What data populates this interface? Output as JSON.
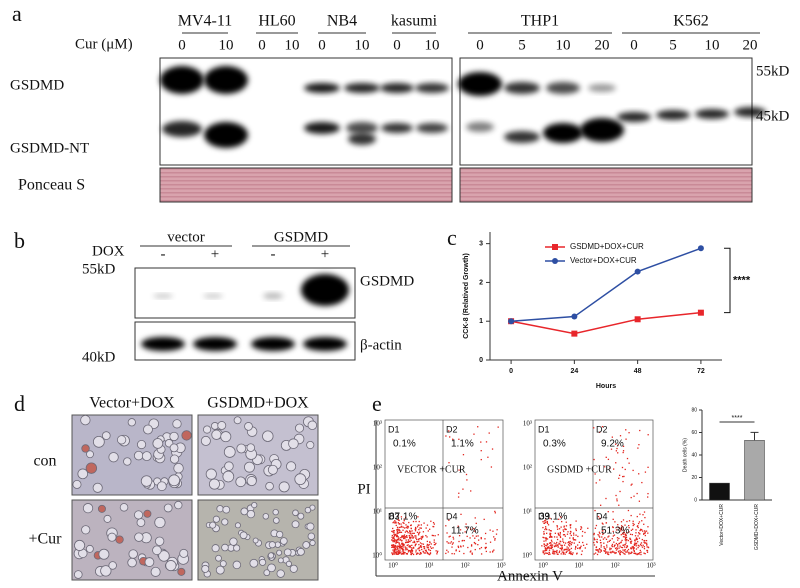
{
  "panel_labels": [
    "a",
    "b",
    "c",
    "d",
    "e"
  ],
  "blot_a": {
    "cur_label": "Cur (μM)",
    "cell_lines": [
      "MV4-11",
      "HL60",
      "NB4",
      "kasumi",
      "THP1",
      "K562"
    ],
    "doses": [
      "0",
      "10",
      "0",
      "10",
      "0",
      "10",
      "0",
      "10",
      "0",
      "5",
      "10",
      "20",
      "0",
      "5",
      "10",
      "20"
    ],
    "bands": [
      "GSDMD",
      "GSDMD-NT"
    ],
    "stain": "Ponceau S",
    "markers": [
      "55kD",
      "45kD"
    ]
  },
  "blot_b": {
    "dox_label": "DOX",
    "groups": [
      "vector",
      "GSDMD"
    ],
    "signs": [
      "-",
      "+",
      "-",
      "+"
    ],
    "markers": [
      "55kD",
      "40kD"
    ],
    "bands": [
      "GSDMD",
      "β-actin"
    ]
  },
  "panel_d": {
    "columns": [
      "Vector+DOX",
      "GSDMD+DOX"
    ],
    "rows": [
      "con",
      "+Cur"
    ]
  },
  "flow": {
    "y_label": "PI",
    "x_label": "Annexin V",
    "ticks": [
      "10⁰",
      "10¹",
      "10²",
      "10³"
    ],
    "plots": [
      {
        "label": "VECTOR +CUR",
        "quadrants": [
          "D1",
          "D2",
          "D3",
          "D4"
        ],
        "percents": [
          "0.1%",
          "1.1%",
          "87.1%",
          "11.7%"
        ]
      },
      {
        "label": "GSDMD +CUR",
        "quadrants": [
          "D1",
          "D2",
          "D3",
          "D4"
        ],
        "percents": [
          "0.3%",
          "9.2%",
          "39.1%",
          "51.3%"
        ]
      }
    ]
  },
  "chart_data": [
    {
      "type": "line",
      "x_label": "Hours",
      "y_label": "CCK-8 (Relatived Growth)",
      "x": [
        0,
        24,
        48,
        72
      ],
      "xlim": [
        -8,
        80
      ],
      "xticks": [
        0,
        24,
        48,
        72
      ],
      "ylim": [
        0,
        3.3
      ],
      "yticks": [
        0,
        1,
        2,
        3
      ],
      "annotation": "****",
      "series": [
        {
          "name": "GSDMD+DOX+CUR",
          "color": "#e8262b",
          "values": [
            1,
            0.68,
            1.05,
            1.22
          ]
        },
        {
          "name": "Vector+DOX+CUR",
          "color": "#2e4fa3",
          "values": [
            1,
            1.12,
            2.28,
            2.88
          ]
        }
      ]
    },
    {
      "type": "bar",
      "y_label": "Death cells (%)",
      "categories": [
        "Vector+DOX+CUR",
        "GSDMD+DOX+CUR"
      ],
      "values": [
        15,
        53
      ],
      "colors": [
        "#111111",
        "#a9a9a9"
      ],
      "ylim": [
        0,
        80
      ],
      "yticks": [
        0,
        20,
        40,
        60,
        80
      ],
      "annotation": "****"
    }
  ]
}
